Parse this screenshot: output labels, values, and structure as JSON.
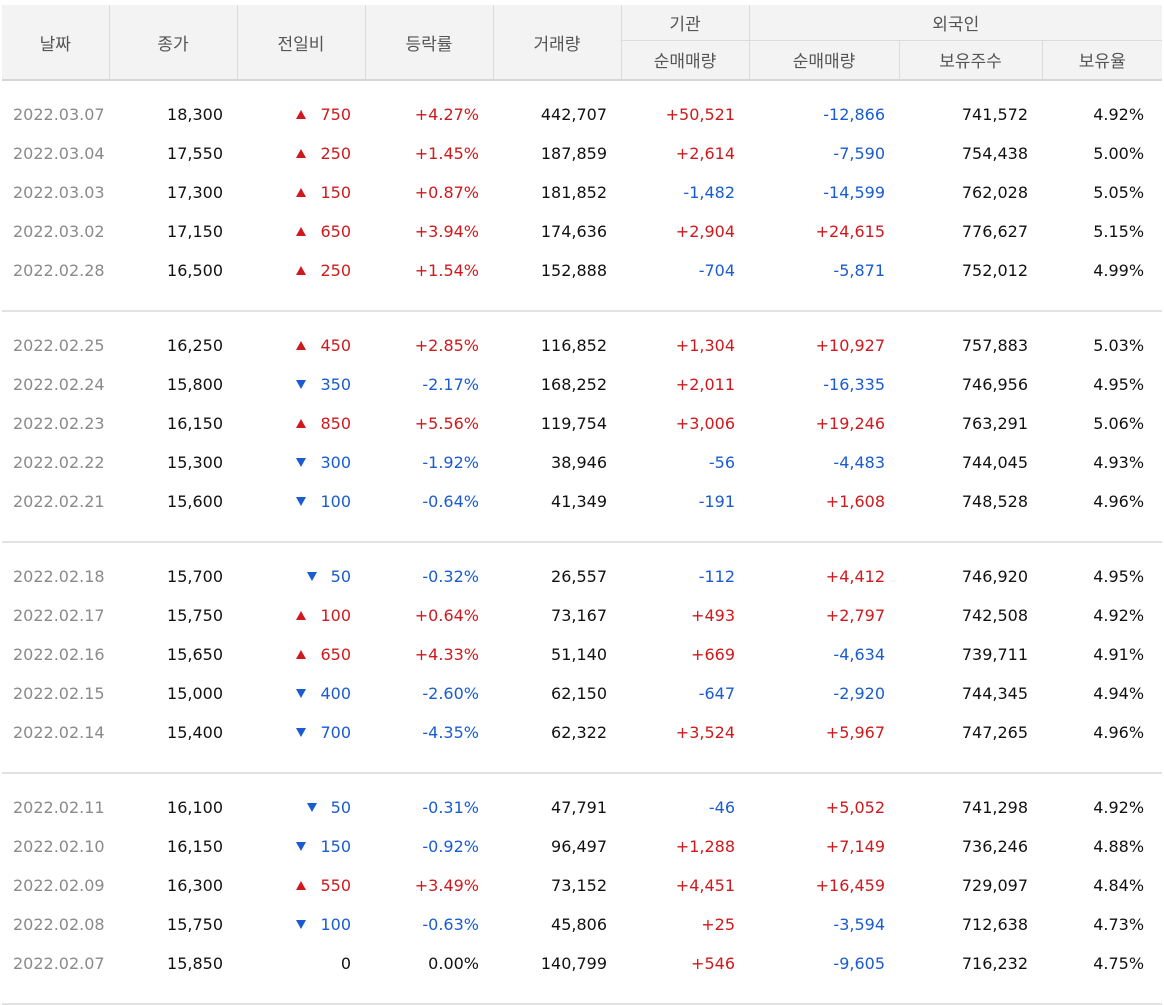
{
  "headers": {
    "date": "날짜",
    "close": "종가",
    "change": "전일비",
    "rate": "등락률",
    "volume": "거래량",
    "institution": "기관",
    "foreigner": "외국인",
    "inst_net": "순매매량",
    "frgn_net": "순매매량",
    "holdings": "보유주수",
    "holding_ratio": "보유율"
  },
  "colors": {
    "up": "#d0191c",
    "down": "#1a5bd0"
  },
  "groups": [
    [
      {
        "date": "2022.03.07",
        "close": "18,300",
        "dir": "up",
        "change": "750",
        "rate": "+4.27%",
        "volume": "442,707",
        "inst": "+50,521",
        "frgn": "-12,866",
        "hold": "741,572",
        "ratio": "4.92%"
      },
      {
        "date": "2022.03.04",
        "close": "17,550",
        "dir": "up",
        "change": "250",
        "rate": "+1.45%",
        "volume": "187,859",
        "inst": "+2,614",
        "frgn": "-7,590",
        "hold": "754,438",
        "ratio": "5.00%"
      },
      {
        "date": "2022.03.03",
        "close": "17,300",
        "dir": "up",
        "change": "150",
        "rate": "+0.87%",
        "volume": "181,852",
        "inst": "-1,482",
        "frgn": "-14,599",
        "hold": "762,028",
        "ratio": "5.05%"
      },
      {
        "date": "2022.03.02",
        "close": "17,150",
        "dir": "up",
        "change": "650",
        "rate": "+3.94%",
        "volume": "174,636",
        "inst": "+2,904",
        "frgn": "+24,615",
        "hold": "776,627",
        "ratio": "5.15%"
      },
      {
        "date": "2022.02.28",
        "close": "16,500",
        "dir": "up",
        "change": "250",
        "rate": "+1.54%",
        "volume": "152,888",
        "inst": "-704",
        "frgn": "-5,871",
        "hold": "752,012",
        "ratio": "4.99%"
      }
    ],
    [
      {
        "date": "2022.02.25",
        "close": "16,250",
        "dir": "up",
        "change": "450",
        "rate": "+2.85%",
        "volume": "116,852",
        "inst": "+1,304",
        "frgn": "+10,927",
        "hold": "757,883",
        "ratio": "5.03%"
      },
      {
        "date": "2022.02.24",
        "close": "15,800",
        "dir": "down",
        "change": "350",
        "rate": "-2.17%",
        "volume": "168,252",
        "inst": "+2,011",
        "frgn": "-16,335",
        "hold": "746,956",
        "ratio": "4.95%"
      },
      {
        "date": "2022.02.23",
        "close": "16,150",
        "dir": "up",
        "change": "850",
        "rate": "+5.56%",
        "volume": "119,754",
        "inst": "+3,006",
        "frgn": "+19,246",
        "hold": "763,291",
        "ratio": "5.06%"
      },
      {
        "date": "2022.02.22",
        "close": "15,300",
        "dir": "down",
        "change": "300",
        "rate": "-1.92%",
        "volume": "38,946",
        "inst": "-56",
        "frgn": "-4,483",
        "hold": "744,045",
        "ratio": "4.93%"
      },
      {
        "date": "2022.02.21",
        "close": "15,600",
        "dir": "down",
        "change": "100",
        "rate": "-0.64%",
        "volume": "41,349",
        "inst": "-191",
        "frgn": "+1,608",
        "hold": "748,528",
        "ratio": "4.96%"
      }
    ],
    [
      {
        "date": "2022.02.18",
        "close": "15,700",
        "dir": "down",
        "change": "50",
        "rate": "-0.32%",
        "volume": "26,557",
        "inst": "-112",
        "frgn": "+4,412",
        "hold": "746,920",
        "ratio": "4.95%"
      },
      {
        "date": "2022.02.17",
        "close": "15,750",
        "dir": "up",
        "change": "100",
        "rate": "+0.64%",
        "volume": "73,167",
        "inst": "+493",
        "frgn": "+2,797",
        "hold": "742,508",
        "ratio": "4.92%"
      },
      {
        "date": "2022.02.16",
        "close": "15,650",
        "dir": "up",
        "change": "650",
        "rate": "+4.33%",
        "volume": "51,140",
        "inst": "+669",
        "frgn": "-4,634",
        "hold": "739,711",
        "ratio": "4.91%"
      },
      {
        "date": "2022.02.15",
        "close": "15,000",
        "dir": "down",
        "change": "400",
        "rate": "-2.60%",
        "volume": "62,150",
        "inst": "-647",
        "frgn": "-2,920",
        "hold": "744,345",
        "ratio": "4.94%"
      },
      {
        "date": "2022.02.14",
        "close": "15,400",
        "dir": "down",
        "change": "700",
        "rate": "-4.35%",
        "volume": "62,322",
        "inst": "+3,524",
        "frgn": "+5,967",
        "hold": "747,265",
        "ratio": "4.96%"
      }
    ],
    [
      {
        "date": "2022.02.11",
        "close": "16,100",
        "dir": "down",
        "change": "50",
        "rate": "-0.31%",
        "volume": "47,791",
        "inst": "-46",
        "frgn": "+5,052",
        "hold": "741,298",
        "ratio": "4.92%"
      },
      {
        "date": "2022.02.10",
        "close": "16,150",
        "dir": "down",
        "change": "150",
        "rate": "-0.92%",
        "volume": "96,497",
        "inst": "+1,288",
        "frgn": "+7,149",
        "hold": "736,246",
        "ratio": "4.88%"
      },
      {
        "date": "2022.02.09",
        "close": "16,300",
        "dir": "up",
        "change": "550",
        "rate": "+3.49%",
        "volume": "73,152",
        "inst": "+4,451",
        "frgn": "+16,459",
        "hold": "729,097",
        "ratio": "4.84%"
      },
      {
        "date": "2022.02.08",
        "close": "15,750",
        "dir": "down",
        "change": "100",
        "rate": "-0.63%",
        "volume": "45,806",
        "inst": "+25",
        "frgn": "-3,594",
        "hold": "712,638",
        "ratio": "4.73%"
      },
      {
        "date": "2022.02.07",
        "close": "15,850",
        "dir": "none",
        "change": "0",
        "rate": "0.00%",
        "volume": "140,799",
        "inst": "+546",
        "frgn": "-9,605",
        "hold": "716,232",
        "ratio": "4.75%"
      }
    ]
  ]
}
